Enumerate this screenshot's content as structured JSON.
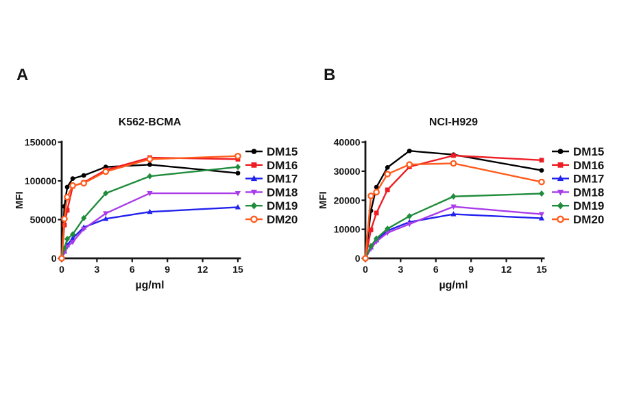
{
  "figure": {
    "background": "#ffffff",
    "text_color": "#141414"
  },
  "chart_data": [
    {
      "type": "line",
      "panel_label": "A",
      "title": "K562-BCMA",
      "xlabel": "µg/ml",
      "ylabel": "MFI",
      "xlim": [
        0,
        15
      ],
      "ylim": [
        0,
        150000
      ],
      "x_ticks": [
        0,
        3,
        6,
        9,
        12,
        15
      ],
      "y_ticks": [
        0,
        50000,
        100000,
        150000
      ],
      "grid": false,
      "legend_position": "right",
      "x": [
        0,
        0.23,
        0.47,
        0.94,
        1.88,
        3.75,
        7.5,
        15
      ],
      "series": [
        {
          "name": "DM15",
          "color": "#000000",
          "marker": "circle",
          "values": [
            0,
            67000,
            92000,
            103000,
            107000,
            118000,
            121000,
            110000
          ]
        },
        {
          "name": "DM16",
          "color": "#EE1D23",
          "marker": "square",
          "values": [
            0,
            43000,
            62000,
            93000,
            98000,
            114000,
            130000,
            128000
          ]
        },
        {
          "name": "DM17",
          "color": "#2222EE",
          "marker": "triangle-up",
          "values": [
            0,
            9000,
            17000,
            26000,
            40000,
            51000,
            60000,
            66000
          ]
        },
        {
          "name": "DM18",
          "color": "#A93BE8",
          "marker": "triangle-down",
          "values": [
            0,
            8000,
            15000,
            21000,
            38000,
            58000,
            84000,
            84000
          ]
        },
        {
          "name": "DM19",
          "color": "#1F8C3C",
          "marker": "diamond",
          "values": [
            0,
            13000,
            25000,
            31000,
            52000,
            84000,
            106000,
            118000
          ]
        },
        {
          "name": "DM20",
          "color": "#FF5C1E",
          "marker": "open-circle",
          "values": [
            0,
            51000,
            79000,
            94000,
            97000,
            112000,
            128000,
            132000
          ]
        }
      ]
    },
    {
      "type": "line",
      "panel_label": "B",
      "title": "NCI-H929",
      "xlabel": "µg/ml",
      "ylabel": "MFI",
      "xlim": [
        0,
        15
      ],
      "ylim": [
        0,
        40000
      ],
      "x_ticks": [
        0,
        3,
        6,
        9,
        12,
        15
      ],
      "y_ticks": [
        0,
        10000,
        20000,
        30000,
        40000
      ],
      "grid": false,
      "legend_position": "right",
      "x": [
        0,
        0.47,
        0.94,
        1.88,
        3.75,
        7.5,
        15
      ],
      "series": [
        {
          "name": "DM15",
          "color": "#000000",
          "marker": "circle",
          "values": [
            0,
            16400,
            24500,
            31300,
            37000,
            35700,
            30300
          ]
        },
        {
          "name": "DM16",
          "color": "#EE1D23",
          "marker": "square",
          "values": [
            0,
            9800,
            15600,
            23600,
            31500,
            35400,
            33800
          ]
        },
        {
          "name": "DM17",
          "color": "#2222EE",
          "marker": "triangle-up",
          "values": [
            0,
            3800,
            6300,
            9500,
            12500,
            15200,
            13800
          ]
        },
        {
          "name": "DM18",
          "color": "#A93BE8",
          "marker": "triangle-down",
          "values": [
            0,
            3300,
            5800,
            8800,
            11800,
            17800,
            15200
          ]
        },
        {
          "name": "DM19",
          "color": "#1F8C3C",
          "marker": "diamond",
          "values": [
            0,
            4200,
            6800,
            10200,
            14500,
            21300,
            22300
          ]
        },
        {
          "name": "DM20",
          "color": "#FF5C1E",
          "marker": "open-circle",
          "values": [
            0,
            21500,
            22800,
            29000,
            32300,
            32700,
            26300
          ]
        }
      ]
    }
  ]
}
